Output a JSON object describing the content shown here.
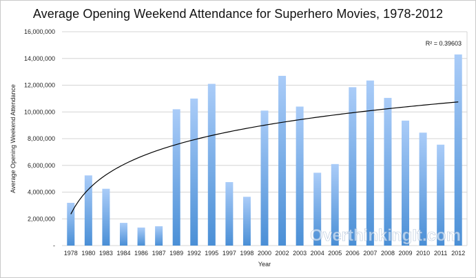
{
  "chart_data": {
    "type": "bar",
    "title": "Average Opening Weekend Attendance for Superhero Movies, 1978-2012",
    "xlabel": "Year",
    "ylabel": "Average Opening Weekend Attendance",
    "categories": [
      "1978",
      "1980",
      "1983",
      "1984",
      "1986",
      "1987",
      "1989",
      "1992",
      "1995",
      "1997",
      "1998",
      "2000",
      "2002",
      "2003",
      "2004",
      "2005",
      "2006",
      "2007",
      "2008",
      "2009",
      "2010",
      "2011",
      "2012"
    ],
    "values": [
      3200000,
      5250000,
      4250000,
      1700000,
      1350000,
      1450000,
      10200000,
      11000000,
      12100000,
      4750000,
      3650000,
      10100000,
      12700000,
      10400000,
      5450000,
      6100000,
      11850000,
      12350000,
      11050000,
      9350000,
      8450000,
      7550000,
      14300000
    ],
    "ylim": [
      0,
      16000000
    ],
    "yticks": [
      0,
      2000000,
      4000000,
      6000000,
      8000000,
      10000000,
      12000000,
      14000000,
      16000000
    ],
    "ytick_labels": [
      "-",
      "2,000,000",
      "4,000,000",
      "6,000,000",
      "8,000,000",
      "10,000,000",
      "12,000,000",
      "14,000,000",
      "16,000,000"
    ],
    "grid": true,
    "legend": "none",
    "trendline": {
      "type": "logarithmic",
      "start_value": 2350000,
      "end_value": 10750000,
      "annotation": "R² = 0.39603"
    },
    "colors": {
      "bar_top": "#aaccf8",
      "bar_bottom": "#4a8fd6",
      "trendline": "#000000",
      "grid": "#d4d4d4"
    },
    "watermark": "OverthinkingIt.com"
  }
}
